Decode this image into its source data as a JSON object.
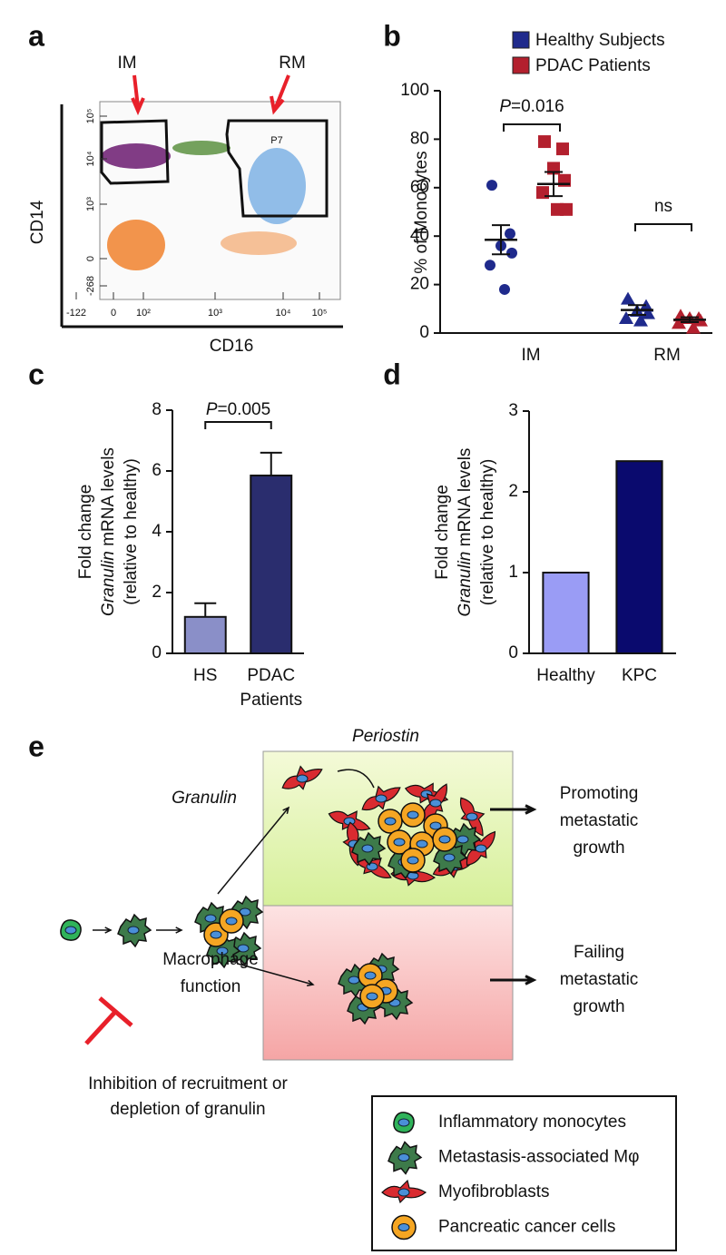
{
  "panel_labels": [
    "a",
    "b",
    "c",
    "d",
    "e"
  ],
  "flow_cytometry": {
    "gates": [
      "IM",
      "RM"
    ],
    "gate_name": "P7",
    "x_label": "CD16",
    "y_label": "CD14",
    "x_tick_labels": [
      "-122",
      "0",
      "10²",
      "10³",
      "10⁴",
      "10⁵"
    ],
    "y_tick_labels": [
      "-268",
      "0",
      "10³",
      "10⁴",
      "10⁵"
    ]
  },
  "chart_data": [
    {
      "type": "dot",
      "y_label": "% of  Monocytes",
      "categories": [
        "IM",
        "RM"
      ],
      "series": [
        {
          "name": "Healthy Subjects",
          "color": "#1f2a8c",
          "markers": [
            "circle",
            "triangle"
          ],
          "values": [
            [
              61,
              41,
              36,
              33,
              28,
              18
            ],
            [
              14,
              11,
              9,
              8,
              6,
              5
            ]
          ],
          "means": [
            38.5,
            9.5
          ],
          "sems": [
            6,
            2
          ]
        },
        {
          "name": "PDAC Patients",
          "color": "#b3202e",
          "markers": [
            "square",
            "triangle"
          ],
          "values": [
            [
              79,
              76,
              68,
              63,
              58,
              51,
              51
            ],
            [
              7,
              6,
              6,
              5,
              4,
              2
            ]
          ],
          "means": [
            61.5,
            5.5
          ],
          "sems": [
            5,
            1
          ]
        }
      ],
      "ylim": [
        0,
        100
      ],
      "yticks": [
        0,
        20,
        40,
        60,
        80,
        100
      ],
      "annotations": [
        {
          "italic": "P",
          "text": "=0.016"
        },
        {
          "text": "ns"
        }
      ]
    },
    {
      "type": "bar",
      "y_label": {
        "line1": "Fold change",
        "line2_italic": "Granulin",
        "line2": " mRNA levels",
        "line3": "(relative to healthy)"
      },
      "categories": [
        "HS",
        "PDAC Patients"
      ],
      "values": [
        1.2,
        5.85
      ],
      "errors": [
        0.45,
        0.75
      ],
      "colors": [
        "#8a8fc8",
        "#2a2d6e"
      ],
      "ylim": [
        0,
        8
      ],
      "yticks": [
        0,
        2,
        4,
        6,
        8
      ],
      "annotations": [
        {
          "italic": "P",
          "text": "=0.005"
        }
      ]
    },
    {
      "type": "bar",
      "y_label": {
        "line1": "Fold change",
        "line2_italic": "Granulin",
        "line2": " mRNA levels",
        "line3": "(relative to healthy)"
      },
      "categories": [
        "Healthy",
        "KPC"
      ],
      "values": [
        1,
        2.38
      ],
      "colors": [
        "#9a9cf5",
        "#0a0a6e"
      ],
      "ylim": [
        0,
        3
      ],
      "yticks": [
        0,
        1,
        2,
        3
      ],
      "annotations": []
    }
  ],
  "diagram": {
    "periostin": "Periostin",
    "granulin": "Granulin",
    "promoting": [
      "Promoting",
      "metastatic",
      "growth"
    ],
    "failing": [
      "Failing",
      "metastatic",
      "growth"
    ],
    "macrophage": [
      "Macrophage",
      "function"
    ],
    "inhibition": [
      "Inhibition of recruitment or",
      "depletion of granulin"
    ],
    "legend": [
      "Inflammatory monocytes",
      "Metastasis-associated Mφ",
      "Myofibroblasts",
      "Pancreatic cancer cells"
    ]
  }
}
